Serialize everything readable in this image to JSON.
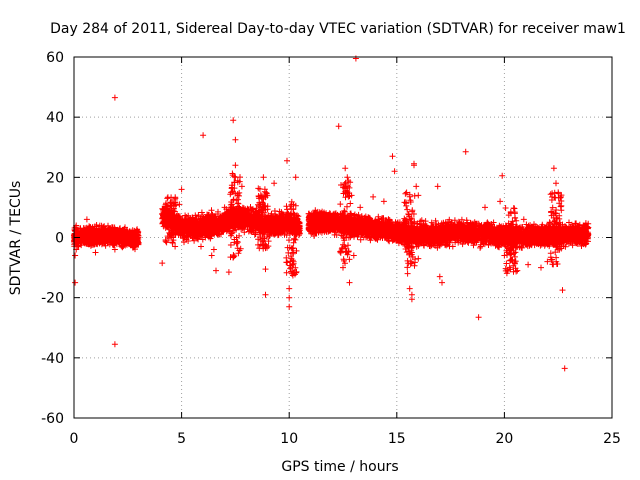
{
  "chart_data": {
    "type": "scatter",
    "title": "Day 284 of 2011, Sidereal Day-to-day VTEC variation (SDTVAR) for receiver maw1",
    "xlabel": "GPS time / hours",
    "ylabel": "SDTVAR / TECUs",
    "xlim": [
      0,
      25
    ],
    "ylim": [
      -60,
      60
    ],
    "xticks": [
      0,
      5,
      10,
      15,
      20,
      25
    ],
    "xtick_labels": [
      "0",
      "5",
      "10",
      "15",
      "20",
      "25"
    ],
    "yticks": [
      -60,
      -40,
      -20,
      0,
      20,
      40,
      60
    ],
    "ytick_labels": [
      "-60",
      "-40",
      "-20",
      "0",
      "20",
      "40",
      "60"
    ],
    "grid": true,
    "marker": "+",
    "series_color": "#ff0000",
    "segments": [
      {
        "x_start": 0.0,
        "x_end": 3.0,
        "baseline": [
          [
            0.0,
            0.0
          ],
          [
            1.0,
            0.5
          ],
          [
            2.0,
            0.5
          ],
          [
            3.0,
            -0.5
          ]
        ],
        "spread": 2.5
      },
      {
        "x_start": 4.1,
        "x_end": 10.5,
        "baseline": [
          [
            4.1,
            8.0
          ],
          [
            5.0,
            3.0
          ],
          [
            6.0,
            3.5
          ],
          [
            7.0,
            5.0
          ],
          [
            7.5,
            7.0
          ],
          [
            8.0,
            6.0
          ],
          [
            9.0,
            4.0
          ],
          [
            10.0,
            5.0
          ],
          [
            10.5,
            3.0
          ]
        ],
        "spread": 3.0
      },
      {
        "x_start": 10.9,
        "x_end": 23.9,
        "baseline": [
          [
            10.9,
            5.0
          ],
          [
            12.0,
            5.0
          ],
          [
            13.0,
            4.0
          ],
          [
            14.0,
            3.0
          ],
          [
            15.0,
            2.0
          ],
          [
            16.0,
            1.0
          ],
          [
            17.0,
            1.0
          ],
          [
            18.0,
            2.0
          ],
          [
            19.0,
            1.5
          ],
          [
            20.0,
            0.5
          ],
          [
            21.0,
            0.5
          ],
          [
            22.0,
            0.5
          ],
          [
            23.0,
            1.0
          ],
          [
            23.9,
            1.0
          ]
        ],
        "spread": 3.0
      }
    ],
    "outliers": [
      [
        0.05,
        -15
      ],
      [
        0.05,
        -6
      ],
      [
        0.1,
        4
      ],
      [
        0.1,
        -4
      ],
      [
        0.6,
        6
      ],
      [
        1.0,
        -5
      ],
      [
        1.9,
        46.5
      ],
      [
        1.9,
        -35.5
      ],
      [
        1.9,
        -4
      ],
      [
        4.1,
        -8.5
      ],
      [
        4.7,
        -3
      ],
      [
        4.9,
        11
      ],
      [
        5.0,
        16
      ],
      [
        5.5,
        4
      ],
      [
        5.9,
        -3
      ],
      [
        6.0,
        34
      ],
      [
        6.4,
        -6
      ],
      [
        6.5,
        4
      ],
      [
        6.5,
        -4
      ],
      [
        6.6,
        -11
      ],
      [
        6.8,
        7
      ],
      [
        7.0,
        10
      ],
      [
        7.2,
        -11.5
      ],
      [
        7.3,
        15
      ],
      [
        7.4,
        39
      ],
      [
        7.5,
        32.5
      ],
      [
        7.5,
        24
      ],
      [
        7.5,
        20
      ],
      [
        7.6,
        14
      ],
      [
        7.8,
        17
      ],
      [
        8.1,
        9
      ],
      [
        8.4,
        7
      ],
      [
        8.6,
        13
      ],
      [
        8.8,
        20
      ],
      [
        8.9,
        -19
      ],
      [
        8.9,
        -10.5
      ],
      [
        9.3,
        18
      ],
      [
        9.9,
        25.5
      ],
      [
        10.0,
        -17
      ],
      [
        10.0,
        -20
      ],
      [
        10.0,
        -23
      ],
      [
        10.1,
        -7
      ],
      [
        10.2,
        11
      ],
      [
        10.3,
        20
      ],
      [
        12.3,
        37
      ],
      [
        12.5,
        -10
      ],
      [
        12.6,
        23
      ],
      [
        12.7,
        20
      ],
      [
        12.7,
        15
      ],
      [
        12.8,
        -15
      ],
      [
        12.9,
        14
      ],
      [
        13.0,
        -6
      ],
      [
        13.1,
        59.5
      ],
      [
        13.3,
        10
      ],
      [
        13.9,
        13.5
      ],
      [
        14.4,
        12
      ],
      [
        14.8,
        27
      ],
      [
        14.9,
        22
      ],
      [
        15.5,
        -12
      ],
      [
        15.6,
        -17
      ],
      [
        15.7,
        -19
      ],
      [
        15.7,
        -20.5
      ],
      [
        15.7,
        -5
      ],
      [
        15.8,
        24.5
      ],
      [
        15.8,
        24
      ],
      [
        15.9,
        17
      ],
      [
        16.0,
        14
      ],
      [
        16.0,
        -7
      ],
      [
        16.5,
        -2
      ],
      [
        16.9,
        17
      ],
      [
        17.0,
        -13
      ],
      [
        17.1,
        -15
      ],
      [
        17.6,
        -3
      ],
      [
        18.2,
        28.5
      ],
      [
        18.5,
        4
      ],
      [
        18.8,
        -26.5
      ],
      [
        19.1,
        10
      ],
      [
        19.5,
        5
      ],
      [
        19.8,
        12
      ],
      [
        19.9,
        20.5
      ],
      [
        20.0,
        -6
      ],
      [
        20.3,
        8
      ],
      [
        20.6,
        -11
      ],
      [
        20.9,
        6
      ],
      [
        21.1,
        -9
      ],
      [
        21.7,
        -10
      ],
      [
        22.0,
        -8
      ],
      [
        22.3,
        23
      ],
      [
        22.4,
        18
      ],
      [
        22.5,
        15
      ],
      [
        22.7,
        -17.5
      ],
      [
        22.8,
        -43.5
      ],
      [
        23.0,
        5
      ]
    ],
    "bursts": [
      {
        "x": 4.5,
        "range": [
          -2,
          14
        ]
      },
      {
        "x": 7.5,
        "range": [
          -7,
          22
        ]
      },
      {
        "x": 8.8,
        "range": [
          -4,
          17
        ]
      },
      {
        "x": 10.1,
        "range": [
          -13,
          12
        ]
      },
      {
        "x": 12.6,
        "range": [
          -9,
          19
        ]
      },
      {
        "x": 15.6,
        "range": [
          -10,
          15
        ]
      },
      {
        "x": 20.3,
        "range": [
          -12,
          10
        ]
      },
      {
        "x": 22.4,
        "range": [
          -9,
          15
        ]
      }
    ]
  }
}
